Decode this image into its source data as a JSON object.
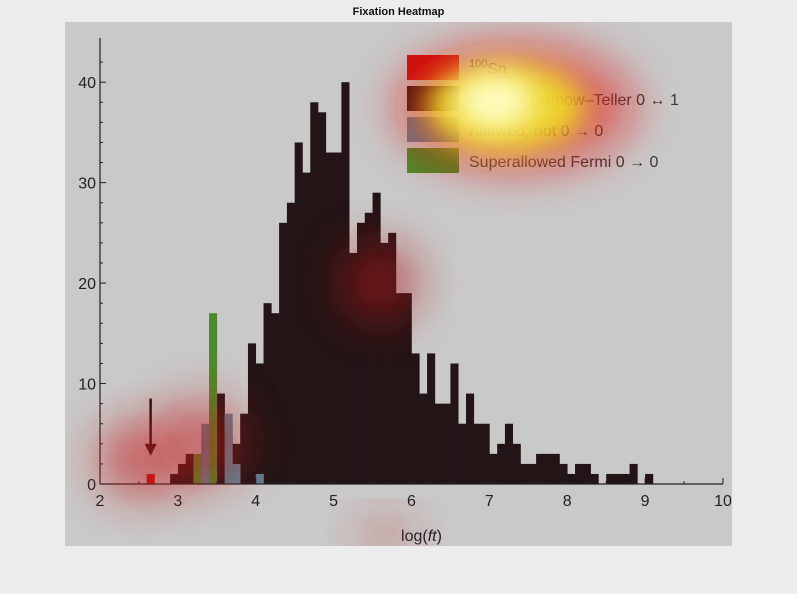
{
  "window": {
    "title": "Fixation Heatmap"
  },
  "chart_data": {
    "type": "bar",
    "xlabel_prefix": "log(",
    "xlabel_italic": "ft",
    "xlabel_suffix": ")",
    "ylabel": "",
    "xlim": [
      2,
      10
    ],
    "ylim": [
      0,
      44
    ],
    "xticks": [
      2,
      3,
      4,
      5,
      6,
      7,
      8,
      9,
      10
    ],
    "yticks": [
      0,
      10,
      20,
      30,
      40
    ],
    "bin_width": 0.1,
    "legend": {
      "position": "top-right",
      "entries": [
        {
          "sup": "100",
          "text": "Sn",
          "color": "#c81414"
        },
        {
          "sup": "",
          "text": "Allowed Gamow–Teller 0 ↔ 1",
          "color": "#231416"
        },
        {
          "sup": "",
          "text": "Allowed, not 0 → 0",
          "color": "#5e8090"
        },
        {
          "sup": "",
          "text": "Superallowed Fermi 0 → 0",
          "color": "#4e8a2c"
        }
      ]
    },
    "annotations": [
      {
        "type": "arrow",
        "x": 2.65,
        "y_from": 8.5,
        "y_to": 2.8,
        "color": "#230e10"
      }
    ],
    "series": [
      {
        "name": "Allowed Gamow–Teller 0 ↔ 1",
        "color": "#231416",
        "x": [
          2.9,
          3.0,
          3.1,
          3.2,
          3.3,
          3.4,
          3.5,
          3.6,
          3.7,
          3.8,
          3.9,
          4.0,
          4.1,
          4.2,
          4.3,
          4.4,
          4.5,
          4.6,
          4.7,
          4.8,
          4.9,
          5.0,
          5.1,
          5.2,
          5.3,
          5.4,
          5.5,
          5.6,
          5.7,
          5.8,
          5.9,
          6.0,
          6.1,
          6.2,
          6.3,
          6.4,
          6.5,
          6.6,
          6.7,
          6.8,
          6.9,
          7.0,
          7.1,
          7.2,
          7.3,
          7.4,
          7.5,
          7.6,
          7.7,
          7.8,
          7.9,
          8.0,
          8.1,
          8.2,
          8.3,
          8.4,
          8.5,
          8.6,
          8.7,
          8.8,
          8.9,
          9.0
        ],
        "values": [
          1,
          2,
          3,
          2,
          3,
          6,
          9,
          5,
          4,
          7,
          14,
          12,
          18,
          17,
          26,
          28,
          34,
          31,
          38,
          37,
          33,
          33,
          40,
          23,
          26,
          27,
          29,
          24,
          25,
          19,
          19,
          13,
          9,
          13,
          8,
          8,
          12,
          6,
          9,
          6,
          6,
          3,
          4,
          6,
          4,
          2,
          2,
          3,
          3,
          3,
          2,
          1,
          2,
          2,
          1,
          0,
          1,
          1,
          1,
          2,
          0,
          1
        ]
      },
      {
        "name": "Allowed, not 0 → 0",
        "color": "#5e8090",
        "x": [
          3.3,
          3.6,
          3.7,
          4.0
        ],
        "values": [
          6,
          7,
          2,
          1
        ]
      },
      {
        "name": "Superallowed Fermi 0 → 0",
        "color": "#4e8a2c",
        "x": [
          3.2,
          3.4
        ],
        "values": [
          3,
          17
        ]
      },
      {
        "name": "100Sn",
        "color": "#c81414",
        "x": [
          2.6
        ],
        "values": [
          1
        ]
      }
    ]
  }
}
